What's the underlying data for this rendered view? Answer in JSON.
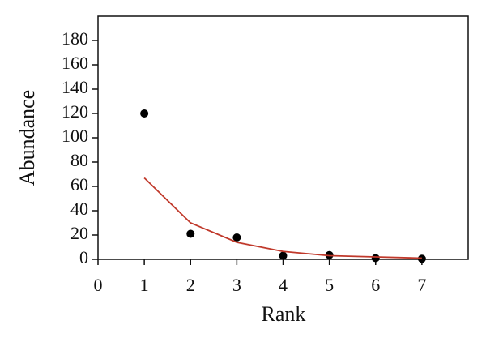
{
  "chart_data": {
    "type": "scatter",
    "x_label": "Rank",
    "y_label": "Abundance",
    "x": [
      1,
      2,
      3,
      4,
      5,
      6,
      7
    ],
    "series": [
      {
        "type": "scatter",
        "color": "#000000",
        "values": [
          120,
          21,
          18,
          3,
          3.5,
          1,
          0.5
        ]
      },
      {
        "type": "line",
        "color": "#c0392b",
        "values": [
          67,
          30,
          14,
          6.5,
          3,
          2,
          1
        ]
      }
    ],
    "xlim": [
      0,
      8
    ],
    "xticks": [
      0,
      1,
      2,
      3,
      4,
      5,
      6,
      7
    ],
    "ylim": [
      0,
      200
    ],
    "yticks": [
      0,
      20,
      40,
      60,
      80,
      100,
      120,
      140,
      160,
      180
    ]
  }
}
